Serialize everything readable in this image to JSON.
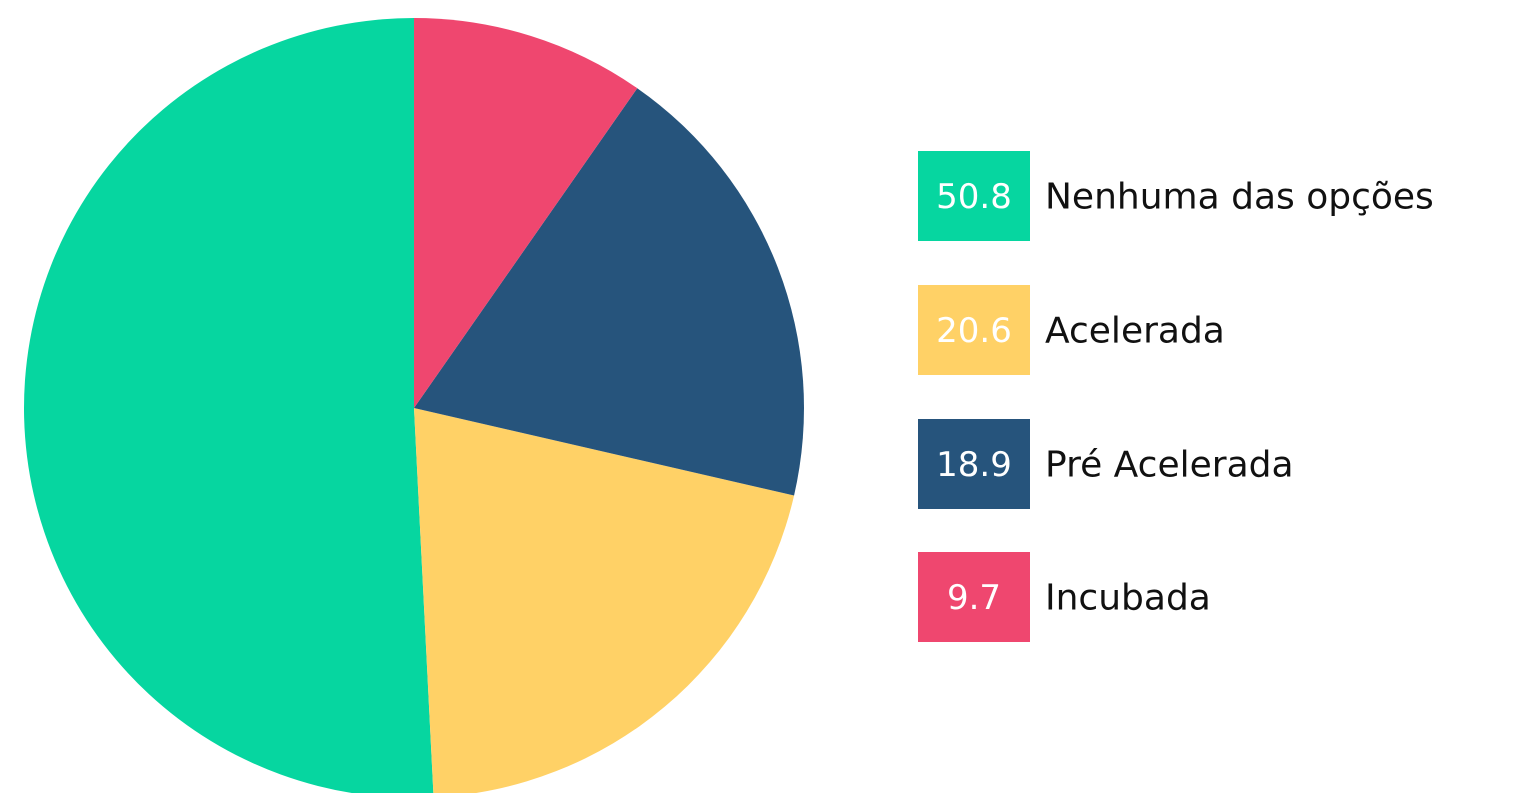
{
  "chart_data": {
    "type": "pie",
    "categories": [
      "Nenhuma das opções",
      "Acelerada",
      "Pré Acelerada",
      "Incubada"
    ],
    "values": [
      50.8,
      20.6,
      18.9,
      9.7
    ],
    "colors": [
      "#06d6a0",
      "#ffd166",
      "#26547c",
      "#ef476f"
    ],
    "direction": "counterclockwise"
  }
}
